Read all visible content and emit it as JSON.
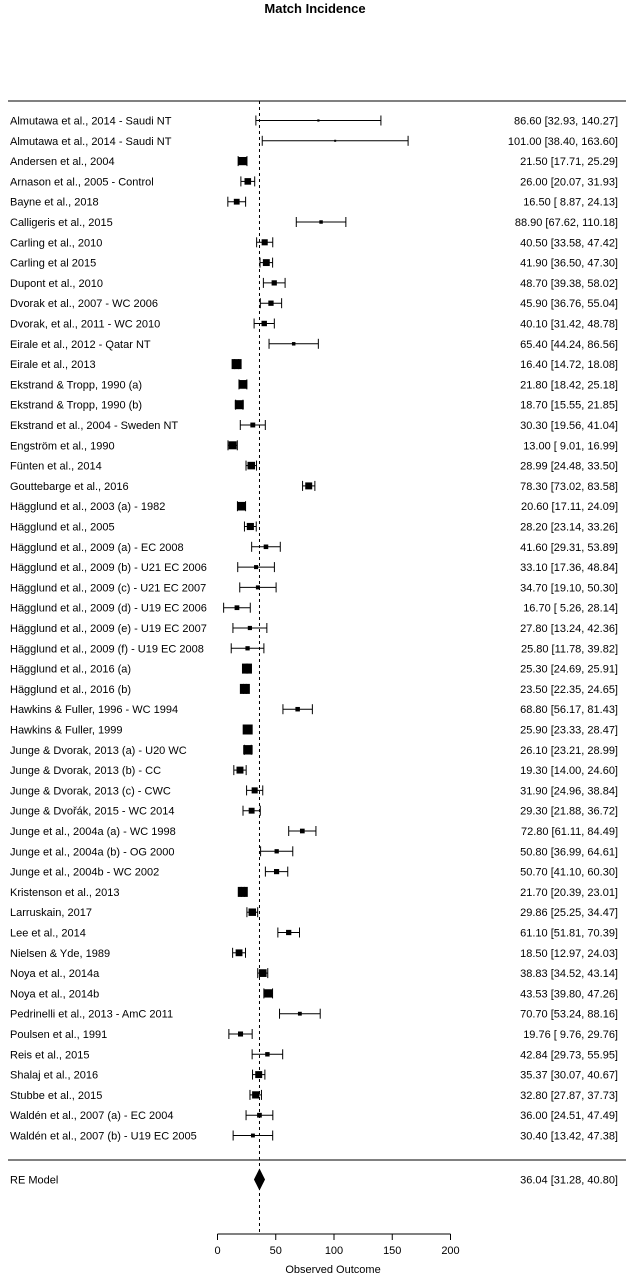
{
  "chart_data": {
    "type": "forest",
    "title": "Match Incidence",
    "xlabel": "Observed Outcome",
    "xlim": [
      0,
      200
    ],
    "xticks": [
      0,
      50,
      100,
      150,
      200
    ],
    "reference_line": 36.04,
    "studies": [
      {
        "label": "Almutawa et al., 2014 - Saudi NT",
        "est": 86.6,
        "lo": 32.93,
        "hi": 140.27,
        "ci_text": "86.60 [32.93, 140.27]"
      },
      {
        "label": "Almutawa et al., 2014 - Saudi NT",
        "est": 101.0,
        "lo": 38.4,
        "hi": 163.6,
        "ci_text": "101.00 [38.40, 163.60]"
      },
      {
        "label": "Andersen et al., 2004",
        "est": 21.5,
        "lo": 17.71,
        "hi": 25.29,
        "ci_text": "21.50 [17.71, 25.29]"
      },
      {
        "label": "Arnason et al., 2005 - Control",
        "est": 26.0,
        "lo": 20.07,
        "hi": 31.93,
        "ci_text": "26.00 [20.07, 31.93]"
      },
      {
        "label": "Bayne et al., 2018",
        "est": 16.5,
        "lo": 8.87,
        "hi": 24.13,
        "ci_text": "16.50 [ 8.87, 24.13]"
      },
      {
        "label": "Calligeris et al., 2015",
        "est": 88.9,
        "lo": 67.62,
        "hi": 110.18,
        "ci_text": "88.90 [67.62, 110.18]"
      },
      {
        "label": "Carling et al., 2010",
        "est": 40.5,
        "lo": 33.58,
        "hi": 47.42,
        "ci_text": "40.50 [33.58, 47.42]"
      },
      {
        "label": "Carling et al 2015",
        "est": 41.9,
        "lo": 36.5,
        "hi": 47.3,
        "ci_text": "41.90 [36.50, 47.30]"
      },
      {
        "label": "Dupont et al., 2010",
        "est": 48.7,
        "lo": 39.38,
        "hi": 58.02,
        "ci_text": "48.70 [39.38, 58.02]"
      },
      {
        "label": "Dvorak et al., 2007 - WC 2006",
        "est": 45.9,
        "lo": 36.76,
        "hi": 55.04,
        "ci_text": "45.90 [36.76, 55.04]"
      },
      {
        "label": "Dvorak, et al., 2011 - WC 2010",
        "est": 40.1,
        "lo": 31.42,
        "hi": 48.78,
        "ci_text": "40.10 [31.42, 48.78]"
      },
      {
        "label": "Eirale et al., 2012 - Qatar NT",
        "est": 65.4,
        "lo": 44.24,
        "hi": 86.56,
        "ci_text": "65.40 [44.24, 86.56]"
      },
      {
        "label": "Eirale et al., 2013",
        "est": 16.4,
        "lo": 14.72,
        "hi": 18.08,
        "ci_text": "16.40 [14.72, 18.08]"
      },
      {
        "label": "Ekstrand & Tropp, 1990 (a)",
        "est": 21.8,
        "lo": 18.42,
        "hi": 25.18,
        "ci_text": "21.80 [18.42, 25.18]"
      },
      {
        "label": "Ekstrand & Tropp, 1990 (b)",
        "est": 18.7,
        "lo": 15.55,
        "hi": 21.85,
        "ci_text": "18.70 [15.55, 21.85]"
      },
      {
        "label": "Ekstrand et al., 2004 - Sweden NT",
        "est": 30.3,
        "lo": 19.56,
        "hi": 41.04,
        "ci_text": "30.30 [19.56, 41.04]"
      },
      {
        "label": "Engström et al., 1990",
        "est": 13.0,
        "lo": 9.01,
        "hi": 16.99,
        "ci_text": "13.00 [ 9.01, 16.99]"
      },
      {
        "label": "Fünten et al., 2014",
        "est": 28.99,
        "lo": 24.48,
        "hi": 33.5,
        "ci_text": "28.99 [24.48, 33.50]"
      },
      {
        "label": "Gouttebarge et al., 2016",
        "est": 78.3,
        "lo": 73.02,
        "hi": 83.58,
        "ci_text": "78.30 [73.02, 83.58]"
      },
      {
        "label": "Hägglund et al., 2003 (a) - 1982",
        "est": 20.6,
        "lo": 17.11,
        "hi": 24.09,
        "ci_text": "20.60 [17.11, 24.09]"
      },
      {
        "label": "Hägglund et al., 2005",
        "est": 28.2,
        "lo": 23.14,
        "hi": 33.26,
        "ci_text": "28.20 [23.14, 33.26]"
      },
      {
        "label": "Hägglund et al., 2009 (a) - EC 2008",
        "est": 41.6,
        "lo": 29.31,
        "hi": 53.89,
        "ci_text": "41.60 [29.31, 53.89]"
      },
      {
        "label": "Hägglund et al., 2009 (b) - U21 EC 2006",
        "est": 33.1,
        "lo": 17.36,
        "hi": 48.84,
        "ci_text": "33.10 [17.36, 48.84]"
      },
      {
        "label": "Hägglund et al., 2009 (c) - U21 EC 2007",
        "est": 34.7,
        "lo": 19.1,
        "hi": 50.3,
        "ci_text": "34.70 [19.10, 50.30]"
      },
      {
        "label": "Hägglund et al., 2009 (d) - U19 EC 2006",
        "est": 16.7,
        "lo": 5.26,
        "hi": 28.14,
        "ci_text": "16.70 [ 5.26, 28.14]"
      },
      {
        "label": "Hägglund et al., 2009 (e) - U19 EC 2007",
        "est": 27.8,
        "lo": 13.24,
        "hi": 42.36,
        "ci_text": "27.80 [13.24, 42.36]"
      },
      {
        "label": "Hägglund et al., 2009 (f) -  U19 EC 2008",
        "est": 25.8,
        "lo": 11.78,
        "hi": 39.82,
        "ci_text": "25.80 [11.78, 39.82]"
      },
      {
        "label": "Hägglund et al., 2016 (a)",
        "est": 25.3,
        "lo": 24.69,
        "hi": 25.91,
        "ci_text": "25.30 [24.69, 25.91]"
      },
      {
        "label": "Hägglund et al., 2016 (b)",
        "est": 23.5,
        "lo": 22.35,
        "hi": 24.65,
        "ci_text": "23.50 [22.35, 24.65]"
      },
      {
        "label": "Hawkins & Fuller, 1996 - WC 1994",
        "est": 68.8,
        "lo": 56.17,
        "hi": 81.43,
        "ci_text": "68.80 [56.17, 81.43]"
      },
      {
        "label": "Hawkins & Fuller, 1999",
        "est": 25.9,
        "lo": 23.33,
        "hi": 28.47,
        "ci_text": "25.90 [23.33, 28.47]"
      },
      {
        "label": "Junge & Dvorak, 2013 (a) - U20 WC",
        "est": 26.1,
        "lo": 23.21,
        "hi": 28.99,
        "ci_text": "26.10 [23.21, 28.99]"
      },
      {
        "label": "Junge & Dvorak, 2013 (b) - CC",
        "est": 19.3,
        "lo": 14.0,
        "hi": 24.6,
        "ci_text": "19.30 [14.00, 24.60]"
      },
      {
        "label": "Junge & Dvorak, 2013 (c)  - CWC",
        "est": 31.9,
        "lo": 24.96,
        "hi": 38.84,
        "ci_text": "31.90 [24.96, 38.84]"
      },
      {
        "label": "Junge & Dvořák, 2015 - WC 2014",
        "est": 29.3,
        "lo": 21.88,
        "hi": 36.72,
        "ci_text": "29.30 [21.88, 36.72]"
      },
      {
        "label": "Junge et al., 2004a (a) - WC 1998",
        "est": 72.8,
        "lo": 61.11,
        "hi": 84.49,
        "ci_text": "72.80 [61.11, 84.49]"
      },
      {
        "label": "Junge et al., 2004a (b) - OG 2000",
        "est": 50.8,
        "lo": 36.99,
        "hi": 64.61,
        "ci_text": "50.80 [36.99, 64.61]"
      },
      {
        "label": "Junge et al., 2004b - WC 2002",
        "est": 50.7,
        "lo": 41.1,
        "hi": 60.3,
        "ci_text": "50.70 [41.10, 60.30]"
      },
      {
        "label": "Kristenson et al., 2013",
        "est": 21.7,
        "lo": 20.39,
        "hi": 23.01,
        "ci_text": "21.70 [20.39, 23.01]"
      },
      {
        "label": "Larruskain, 2017",
        "est": 29.86,
        "lo": 25.25,
        "hi": 34.47,
        "ci_text": "29.86 [25.25, 34.47]"
      },
      {
        "label": "Lee et al., 2014",
        "est": 61.1,
        "lo": 51.81,
        "hi": 70.39,
        "ci_text": "61.10 [51.81, 70.39]"
      },
      {
        "label": "Nielsen & Yde, 1989",
        "est": 18.5,
        "lo": 12.97,
        "hi": 24.03,
        "ci_text": "18.50 [12.97, 24.03]"
      },
      {
        "label": "Noya et al., 2014a",
        "est": 38.83,
        "lo": 34.52,
        "hi": 43.14,
        "ci_text": "38.83 [34.52, 43.14]"
      },
      {
        "label": "Noya et al., 2014b",
        "est": 43.53,
        "lo": 39.8,
        "hi": 47.26,
        "ci_text": "43.53 [39.80, 47.26]"
      },
      {
        "label": "Pedrinelli et al., 2013 - AmC 2011",
        "est": 70.7,
        "lo": 53.24,
        "hi": 88.16,
        "ci_text": "70.70 [53.24, 88.16]"
      },
      {
        "label": "Poulsen et al., 1991",
        "est": 19.76,
        "lo": 9.76,
        "hi": 29.76,
        "ci_text": "19.76 [ 9.76, 29.76]"
      },
      {
        "label": "Reis et al., 2015",
        "est": 42.84,
        "lo": 29.73,
        "hi": 55.95,
        "ci_text": "42.84 [29.73, 55.95]"
      },
      {
        "label": "Shalaj et al., 2016",
        "est": 35.37,
        "lo": 30.07,
        "hi": 40.67,
        "ci_text": "35.37 [30.07, 40.67]"
      },
      {
        "label": "Stubbe et al., 2015",
        "est": 32.8,
        "lo": 27.87,
        "hi": 37.73,
        "ci_text": "32.80 [27.87, 37.73]"
      },
      {
        "label": "Waldén et al., 2007 (a) - EC 2004",
        "est": 36.0,
        "lo": 24.51,
        "hi": 47.49,
        "ci_text": "36.00 [24.51, 47.49]"
      },
      {
        "label": "Waldén et al., 2007 (b) - U19 EC 2005",
        "est": 30.4,
        "lo": 13.42,
        "hi": 47.38,
        "ci_text": "30.40 [13.42, 47.38]"
      }
    ],
    "summary": {
      "label": "RE Model",
      "est": 36.04,
      "lo": 31.28,
      "hi": 40.8,
      "ci_text": "36.04 [31.28, 40.80]"
    }
  }
}
